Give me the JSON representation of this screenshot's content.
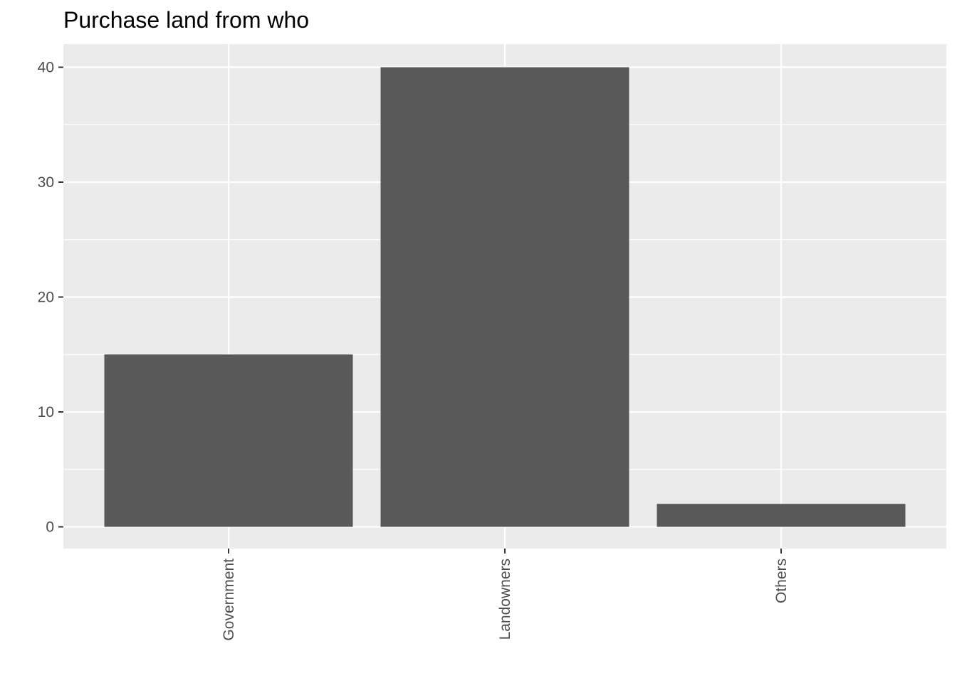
{
  "chart_data": {
    "type": "bar",
    "title": "Purchase land from who",
    "xlabel": "",
    "ylabel": "",
    "categories": [
      "Government",
      "Landowners",
      "Others"
    ],
    "values": [
      15,
      40,
      2
    ],
    "ylim": [
      -2,
      42
    ],
    "yticks": [
      0,
      10,
      20,
      30,
      40
    ],
    "grid": true,
    "x_tick_label_rotation": "vertical",
    "colors": {
      "panel": "#ebebeb",
      "grid": "#ffffff",
      "bar": "#595959",
      "tick_text": "#4d4d4d",
      "tick_mark": "#333333"
    }
  }
}
